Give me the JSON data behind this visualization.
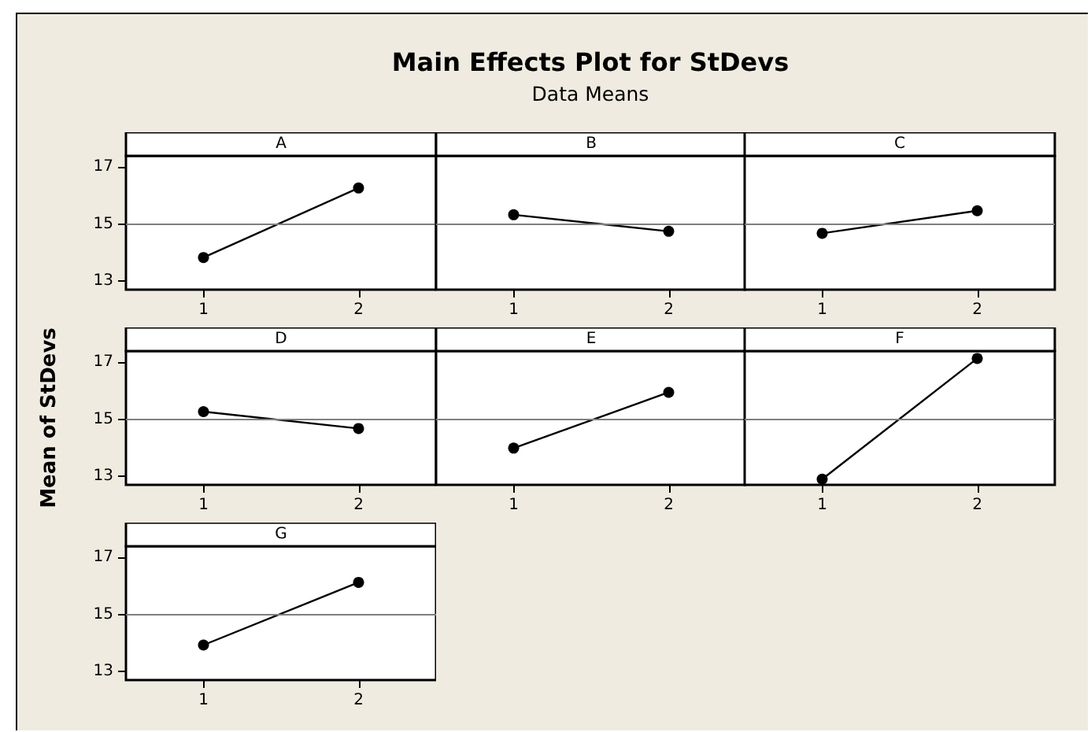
{
  "chart_data": [
    {
      "type": "line",
      "categories": [
        "1",
        "2"
      ],
      "series": [
        {
          "name": "A",
          "color": "#000000",
          "values": [
            13.83,
            16.27
          ]
        }
      ],
      "ylim": [
        12.7,
        17.4
      ],
      "yticks": [
        13,
        15,
        17
      ],
      "ref_lines": [
        {
          "axis": "y",
          "value": 15,
          "color": "#7f7f7f"
        }
      ],
      "marker": "circle",
      "grid": false
    },
    {
      "type": "line",
      "title": "Main Effects Plot for StDevs",
      "subtitle": "Data Means",
      "categories": [
        "1",
        "2"
      ],
      "series": [
        {
          "name": "B",
          "color": "#000000",
          "values": [
            15.33,
            14.75
          ]
        }
      ],
      "ylim": [
        12.7,
        17.4
      ],
      "yticks": [
        13,
        15,
        17
      ],
      "ref_lines": [
        {
          "axis": "y",
          "value": 15,
          "color": "#7f7f7f"
        }
      ],
      "marker": "circle",
      "grid": false,
      "tick_labels": "x"
    },
    {
      "type": "line",
      "categories": [
        "1",
        "2"
      ],
      "series": [
        {
          "name": "C",
          "color": "#000000",
          "values": [
            14.68,
            15.47
          ]
        }
      ],
      "ylim": [
        12.7,
        17.4
      ],
      "yticks": [
        13,
        15,
        17
      ],
      "ref_lines": [
        {
          "axis": "y",
          "value": 15,
          "color": "#7f7f7f"
        }
      ],
      "marker": "circle",
      "grid": false,
      "tick_labels": "x"
    },
    {
      "type": "line",
      "ylabel": "Mean of StDevs",
      "categories": [
        "1",
        "2"
      ],
      "series": [
        {
          "name": "D",
          "color": "#000000",
          "values": [
            15.27,
            14.68
          ]
        }
      ],
      "ylim": [
        12.7,
        17.4
      ],
      "yticks": [
        13,
        15,
        17
      ],
      "ref_lines": [
        {
          "axis": "y",
          "value": 15,
          "color": "#7f7f7f"
        }
      ],
      "marker": "circle",
      "grid": false
    },
    {
      "type": "line",
      "categories": [
        "1",
        "2"
      ],
      "series": [
        {
          "name": "E",
          "color": "#000000",
          "values": [
            13.99,
            15.95
          ]
        }
      ],
      "ylim": [
        12.7,
        17.4
      ],
      "yticks": [
        13,
        15,
        17
      ],
      "ref_lines": [
        {
          "axis": "y",
          "value": 15,
          "color": "#7f7f7f"
        }
      ],
      "marker": "circle",
      "grid": false,
      "tick_labels": "x"
    },
    {
      "type": "line",
      "categories": [
        "1",
        "2"
      ],
      "series": [
        {
          "name": "F",
          "color": "#000000",
          "values": [
            12.9,
            17.14
          ]
        }
      ],
      "ylim": [
        12.7,
        17.4
      ],
      "yticks": [
        13,
        15,
        17
      ],
      "ref_lines": [
        {
          "axis": "y",
          "value": 15,
          "color": "#7f7f7f"
        }
      ],
      "marker": "circle",
      "grid": false,
      "tick_labels": "x"
    },
    {
      "type": "line",
      "categories": [
        "1",
        "2"
      ],
      "series": [
        {
          "name": "G",
          "color": "#000000",
          "values": [
            13.93,
            16.13
          ]
        }
      ],
      "ylim": [
        12.7,
        17.4
      ],
      "yticks": [
        13,
        15,
        17
      ],
      "ref_lines": [
        {
          "axis": "y",
          "value": 15,
          "color": "#7f7f7f"
        }
      ],
      "marker": "circle",
      "grid": false
    }
  ]
}
